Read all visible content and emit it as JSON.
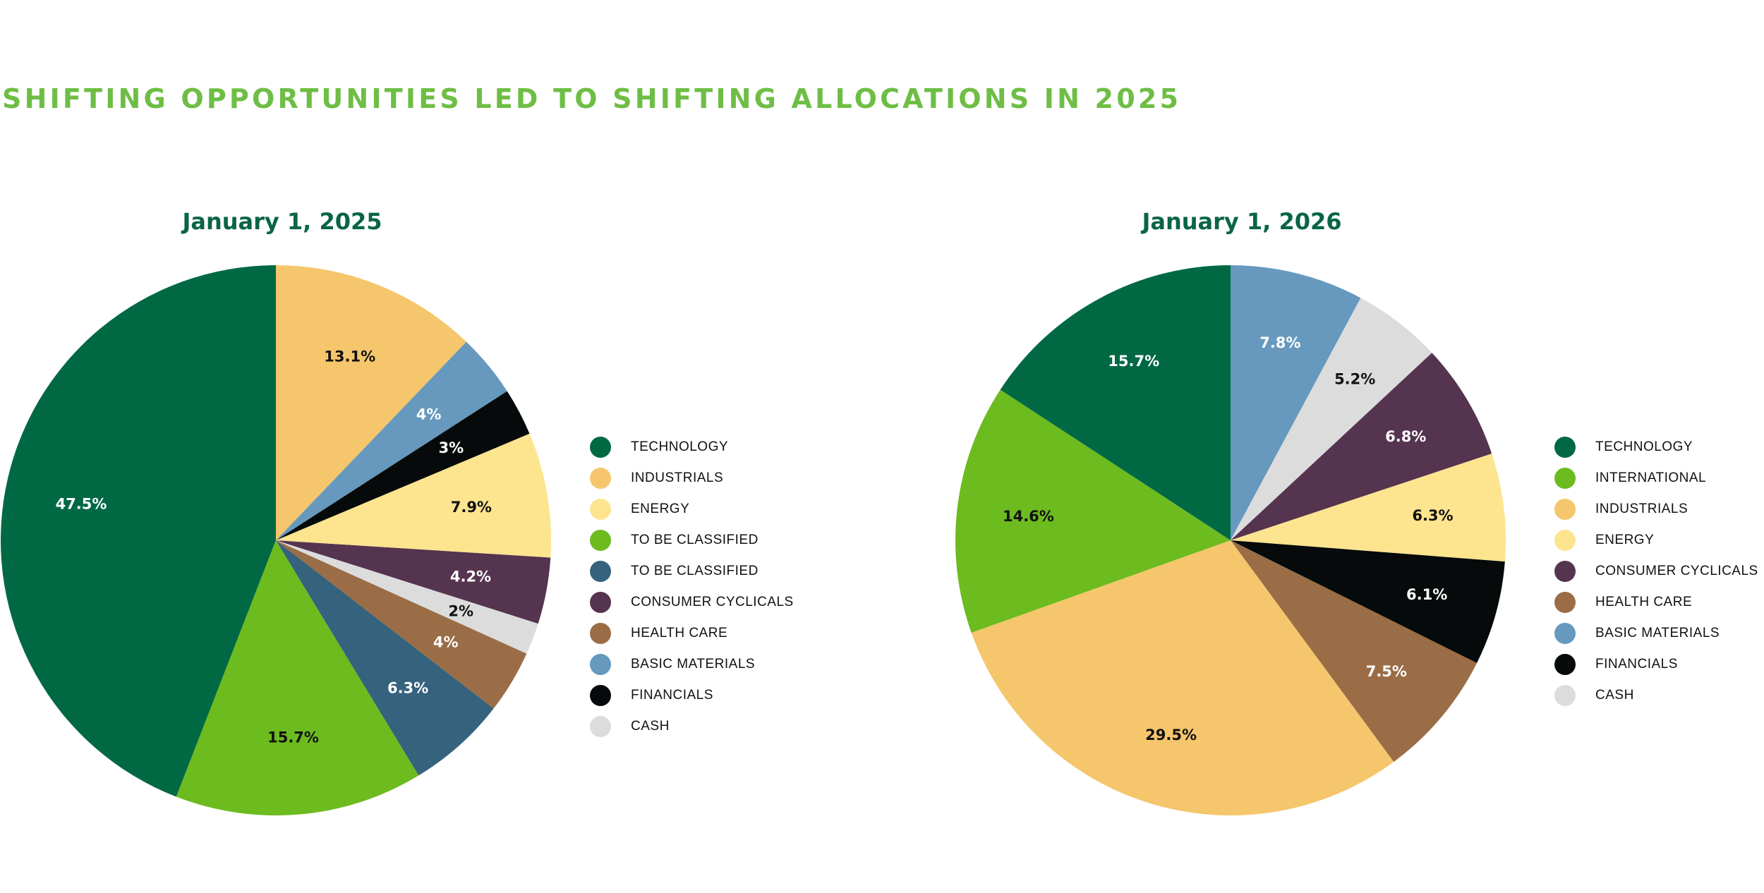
{
  "header": {
    "title": "SHIFTING OPPORTUNITIES LED TO SHIFTING ALLOCATIONS IN 2025"
  },
  "chart_data": [
    {
      "type": "pie",
      "title": "January 1, 2025",
      "legend_placement": "right",
      "slices": [
        {
          "label": "TECHNOLOGY",
          "value": 47.5,
          "display": "47.5%",
          "color": "#006944",
          "text_color": "#ffffff"
        },
        {
          "label": "TO BE CLASSIFIED",
          "value": 15.7,
          "display": "15.7%",
          "color": "#6cbb1f",
          "text_color": "#111111"
        },
        {
          "label": "TO BE CLASSIFIED",
          "value": 6.3,
          "display": "6.3%",
          "color": "#35627c",
          "text_color": "#ffffff"
        },
        {
          "label": "HEALTH CARE",
          "value": 4.0,
          "display": "4%",
          "color": "#9a6d46",
          "text_color": "#ffffff"
        },
        {
          "label": "CASH",
          "value": 2.0,
          "display": "2%",
          "color": "#dcdcdc",
          "text_color": "#111111"
        },
        {
          "label": "CONSUMER CYCLICALS",
          "value": 4.2,
          "display": "4.2%",
          "color": "#55344f",
          "text_color": "#ffffff"
        },
        {
          "label": "ENERGY",
          "value": 7.9,
          "display": "7.9%",
          "color": "#fde48f",
          "text_color": "#111111"
        },
        {
          "label": "FINANCIALS",
          "value": 3.0,
          "display": "3%",
          "color": "#060a0a",
          "text_color": "#ffffff"
        },
        {
          "label": "BASIC MATERIALS",
          "value": 4.0,
          "display": "4%",
          "color": "#6699bd",
          "text_color": "#ffffff"
        },
        {
          "label": "INDUSTRIALS",
          "value": 13.1,
          "display": "13.1%",
          "color": "#f5c66c",
          "text_color": "#111111"
        }
      ],
      "legend": [
        {
          "label": "TECHNOLOGY",
          "color": "#006944"
        },
        {
          "label": "INDUSTRIALS",
          "color": "#f5c66c"
        },
        {
          "label": "ENERGY",
          "color": "#fde48f"
        },
        {
          "label": "TO BE CLASSIFIED",
          "color": "#6cbb1f"
        },
        {
          "label": "TO BE CLASSIFIED",
          "color": "#35627c"
        },
        {
          "label": "CONSUMER CYCLICALS",
          "color": "#55344f"
        },
        {
          "label": "HEALTH CARE",
          "color": "#9a6d46"
        },
        {
          "label": "BASIC MATERIALS",
          "color": "#6699bd"
        },
        {
          "label": "FINANCIALS",
          "color": "#060a0a"
        },
        {
          "label": "CASH",
          "color": "#dcdcdc"
        }
      ]
    },
    {
      "type": "pie",
      "title": "January 1, 2026",
      "legend_placement": "right",
      "slices": [
        {
          "label": "BASIC MATERIALS",
          "value": 7.8,
          "display": "7.8%",
          "color": "#6699bd",
          "text_color": "#ffffff"
        },
        {
          "label": "CASH",
          "value": 5.2,
          "display": "5.2%",
          "color": "#dcdcdc",
          "text_color": "#111111"
        },
        {
          "label": "CONSUMER CYCLICALS",
          "value": 6.8,
          "display": "6.8%",
          "color": "#55344f",
          "text_color": "#ffffff"
        },
        {
          "label": "ENERGY",
          "value": 6.3,
          "display": "6.3%",
          "color": "#fde48f",
          "text_color": "#111111"
        },
        {
          "label": "FINANCIALS",
          "value": 6.1,
          "display": "6.1%",
          "color": "#060a0a",
          "text_color": "#ffffff"
        },
        {
          "label": "HEALTH CARE",
          "value": 7.5,
          "display": "7.5%",
          "color": "#9a6d46",
          "text_color": "#ffffff"
        },
        {
          "label": "INDUSTRIALS",
          "value": 29.5,
          "display": "29.5%",
          "color": "#f5c66c",
          "text_color": "#111111"
        },
        {
          "label": "INTERNATIONAL",
          "value": 14.6,
          "display": "14.6%",
          "color": "#6cbb1f",
          "text_color": "#111111"
        },
        {
          "label": "TECHNOLOGY",
          "value": 15.7,
          "display": "15.7%",
          "color": "#006944",
          "text_color": "#ffffff"
        }
      ],
      "legend": [
        {
          "label": "TECHNOLOGY",
          "color": "#006944"
        },
        {
          "label": "INTERNATIONAL",
          "color": "#6cbb1f"
        },
        {
          "label": "INDUSTRIALS",
          "color": "#f5c66c"
        },
        {
          "label": "ENERGY",
          "color": "#fde48f"
        },
        {
          "label": "CONSUMER CYCLICALS",
          "color": "#55344f"
        },
        {
          "label": "HEALTH CARE",
          "color": "#9a6d46"
        },
        {
          "label": "BASIC MATERIALS",
          "color": "#6699bd"
        },
        {
          "label": "FINANCIALS",
          "color": "#060a0a"
        },
        {
          "label": "CASH",
          "color": "#dcdcdc"
        }
      ]
    }
  ]
}
